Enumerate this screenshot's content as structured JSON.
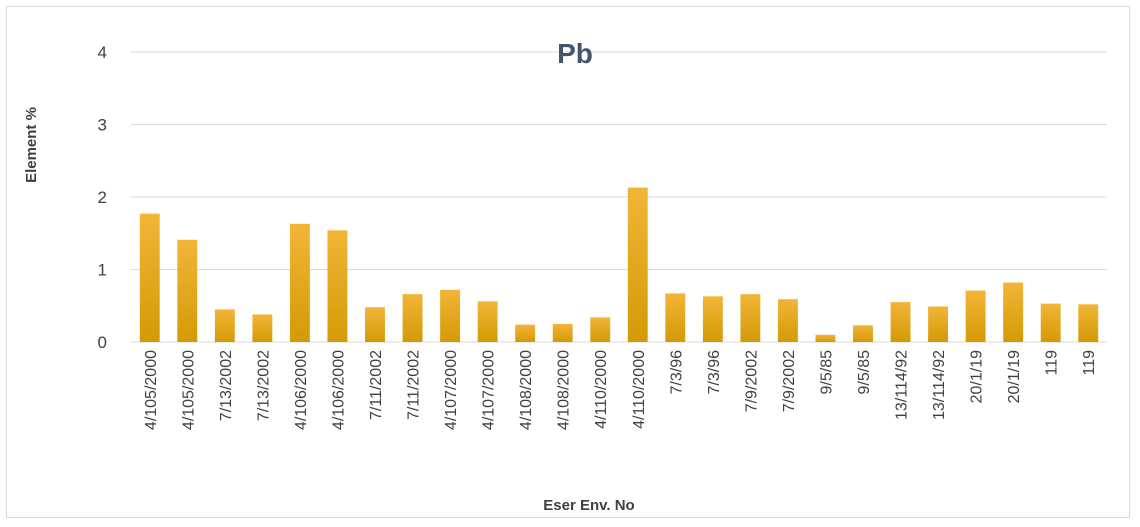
{
  "chart_data": {
    "type": "bar",
    "title": "Pb",
    "xlabel": "Eser Env. No",
    "ylabel": "Element %",
    "ylim": [
      0,
      4
    ],
    "yticks": [
      0,
      1,
      2,
      3,
      4
    ],
    "grid": true,
    "legend": "none",
    "colors": {
      "bar_top": "#f2b538",
      "bar_bottom": "#d49a05",
      "grid": "#d9d9d9",
      "text": "#404040",
      "title": "#44546a"
    },
    "categories": [
      "4/105/2000",
      "4/105/2000",
      "7/13/2002",
      "7/13/2002",
      "4/106/2000",
      "4/106/2000",
      "7/11/2002",
      "7/11/2002",
      "4/107/2000",
      "4/107/2000",
      "4/108/2000",
      "4/108/2000",
      "4/110/2000",
      "4/110/2000",
      "7/3/96",
      "7/3/96",
      "7/9/2002",
      "7/9/2002",
      "9/5/85",
      "9/5/85",
      "13/114/92",
      "13/114/92",
      "20/1/19",
      "20/1/19",
      "119",
      "119"
    ],
    "values": [
      1.77,
      1.41,
      0.45,
      0.38,
      1.63,
      1.54,
      0.48,
      0.66,
      0.72,
      0.56,
      0.24,
      0.25,
      0.34,
      2.13,
      0.67,
      0.63,
      0.66,
      0.59,
      0.1,
      0.23,
      0.55,
      0.49,
      0.71,
      0.82,
      0.53,
      0.52
    ]
  }
}
